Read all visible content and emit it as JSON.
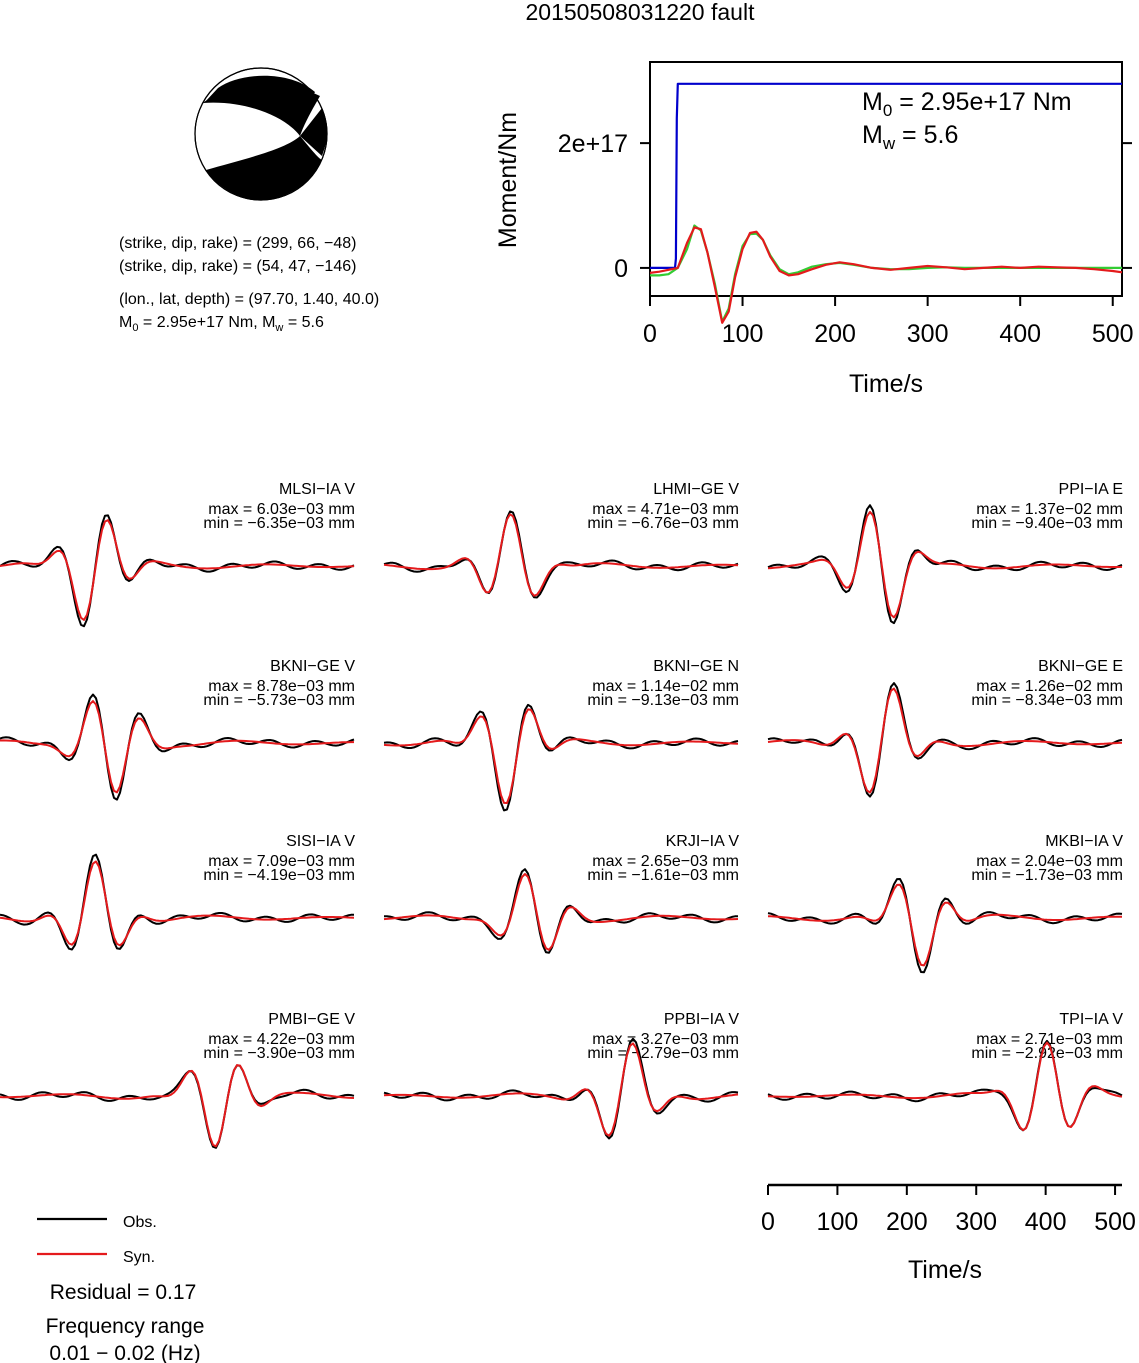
{
  "title": "20150508031220 fault",
  "mechanism": {
    "planes": [
      "(strike, dip, rake) = (299, 66, −48)",
      "(strike, dip, rake) = (54, 47, −146)"
    ],
    "location": "(lon., lat, depth) = (97.70, 1.40, 40.0)",
    "moment_prefix": "M",
    "moment_sub": "0",
    "moment_suffix": " = 2.95e+17 Nm, M",
    "mw_sub": "w",
    "mw_suffix": " = 5.6"
  },
  "moment_panel": {
    "ylabel": "Moment/Nm",
    "xlabel": "Time/s",
    "m0_prefix": "M",
    "m0_sub": "0",
    "m0_suffix": " = 2.95e+17 Nm",
    "mw_prefix": "M",
    "mw_sub": "w",
    "mw_suffix": " = 5.6",
    "x_ticks": [
      "0",
      "100",
      "200",
      "300",
      "400",
      "500"
    ],
    "y_ticks": [
      "0",
      "2e+17"
    ]
  },
  "waveform_axis": {
    "xlabel": "Time/s",
    "x_ticks": [
      "0",
      "100",
      "200",
      "300",
      "400",
      "500"
    ]
  },
  "legend": {
    "obs_label": "Obs.",
    "syn_label": "Syn.",
    "residual": "Residual = 0.17",
    "freq_title": "Frequency range",
    "freq_value": "0.01 − 0.02 (Hz)"
  },
  "colors": {
    "observed": "#000000",
    "synthetic": "#e41a1c",
    "moment_cumulative": "#0000cc",
    "moment_rate_green": "#33cc33",
    "moment_rate_red": "#e41a1c",
    "beachball_fill": "#000000"
  },
  "chart_data": [
    {
      "type": "line",
      "name": "moment",
      "xlim": [
        0,
        510
      ],
      "ylim": [
        -4.5e+16,
        3.3e+17
      ],
      "series": [
        {
          "color": "blue",
          "x": [
            0,
            27,
            28,
            29,
            30,
            510
          ],
          "y": [
            0,
            0,
            1.5e+16,
            2.4e+17,
            2.95e+17,
            2.95e+17
          ]
        },
        {
          "color": "green",
          "x": [
            0,
            10,
            20,
            30,
            40,
            48,
            55,
            62,
            70,
            78,
            85,
            92,
            100,
            108,
            115,
            122,
            130,
            140,
            150,
            160,
            175,
            190,
            205,
            220,
            240,
            260,
            280,
            300,
            320,
            340,
            360,
            380,
            400,
            420,
            440,
            460,
            480,
            500,
            510
          ],
          "y": [
            -1.2e+16,
            -1.2e+16,
            -1e+16,
            0,
            3e+16,
            6.8e+16,
            6e+16,
            2.5e+16,
            -2.5e+16,
            -8.6e+16,
            -6.5e+16,
            -1e+16,
            3.5e+16,
            5.4e+16,
            5.5e+16,
            4.5e+16,
            2e+16,
            -2000000000000000.0,
            -1e+16,
            -7000000000000000.0,
            2000000000000000.0,
            6000000000000000.0,
            8000000000000000.0,
            5000000000000000.0,
            0,
            -2000000000000000.0,
            -2000000000000000.0,
            0,
            1000000000000000.0,
            0,
            0,
            0,
            0,
            0,
            0,
            0,
            0,
            0,
            0
          ]
        },
        {
          "color": "red",
          "x": [
            0,
            10,
            20,
            30,
            40,
            48,
            55,
            62,
            70,
            78,
            85,
            92,
            100,
            108,
            115,
            122,
            130,
            140,
            150,
            160,
            175,
            190,
            205,
            220,
            240,
            260,
            280,
            300,
            320,
            340,
            360,
            380,
            400,
            420,
            440,
            460,
            480,
            500,
            510
          ],
          "y": [
            -8000000000000000.0,
            -6000000000000000.0,
            -3000000000000000.0,
            0,
            4e+16,
            6.5e+16,
            6.2e+16,
            2.5e+16,
            -3e+16,
            -8.8e+16,
            -7e+16,
            -1.5e+16,
            3e+16,
            5.6e+16,
            5.8e+16,
            4.5e+16,
            1.8e+16,
            -5000000000000000.0,
            -1.2e+16,
            -1e+16,
            -2000000000000000.0,
            5000000000000000.0,
            9000000000000000.0,
            6000000000000000.0,
            0,
            -3000000000000000.0,
            0,
            3000000000000000.0,
            1000000000000000.0,
            -2000000000000000.0,
            0,
            2000000000000000.0,
            0,
            2000000000000000.0,
            1000000000000000.0,
            0,
            -2000000000000000.0,
            -5000000000000000.0,
            -7000000000000000.0
          ]
        }
      ]
    }
  ],
  "stations": [
    {
      "name": "MLSI−IA V",
      "max": "max = 6.03e−03 mm",
      "min": "min = −6.35e−03 mm"
    },
    {
      "name": "LHMI−GE V",
      "max": "max = 4.71e−03 mm",
      "min": "min = −6.76e−03 mm"
    },
    {
      "name": "PPI−IA E",
      "max": "max = 1.37e−02 mm",
      "min": "min = −9.40e−03 mm"
    },
    {
      "name": "BKNI−GE V",
      "max": "max = 8.78e−03 mm",
      "min": "min = −5.73e−03 mm"
    },
    {
      "name": "BKNI−GE N",
      "max": "max = 1.14e−02 mm",
      "min": "min = −9.13e−03 mm"
    },
    {
      "name": "BKNI−GE E",
      "max": "max = 1.26e−02 mm",
      "min": "min = −8.34e−03 mm"
    },
    {
      "name": "SISI−IA V",
      "max": "max = 7.09e−03 mm",
      "min": "min = −4.19e−03 mm"
    },
    {
      "name": "KRJI−IA V",
      "max": "max = 2.65e−03 mm",
      "min": "min = −1.61e−03 mm"
    },
    {
      "name": "MKBI−IA V",
      "max": "max = 2.04e−03 mm",
      "min": "min = −1.73e−03 mm"
    },
    {
      "name": "PMBI−GE V",
      "max": "max = 4.22e−03 mm",
      "min": "min = −3.90e−03 mm"
    },
    {
      "name": "PPBI−IA V",
      "max": "max = 3.27e−03 mm",
      "min": "min = −2.79e−03 mm"
    },
    {
      "name": "TPI−IA V",
      "max": "max = 2.71e−03 mm",
      "min": "min = −2.92e−03 mm"
    }
  ]
}
